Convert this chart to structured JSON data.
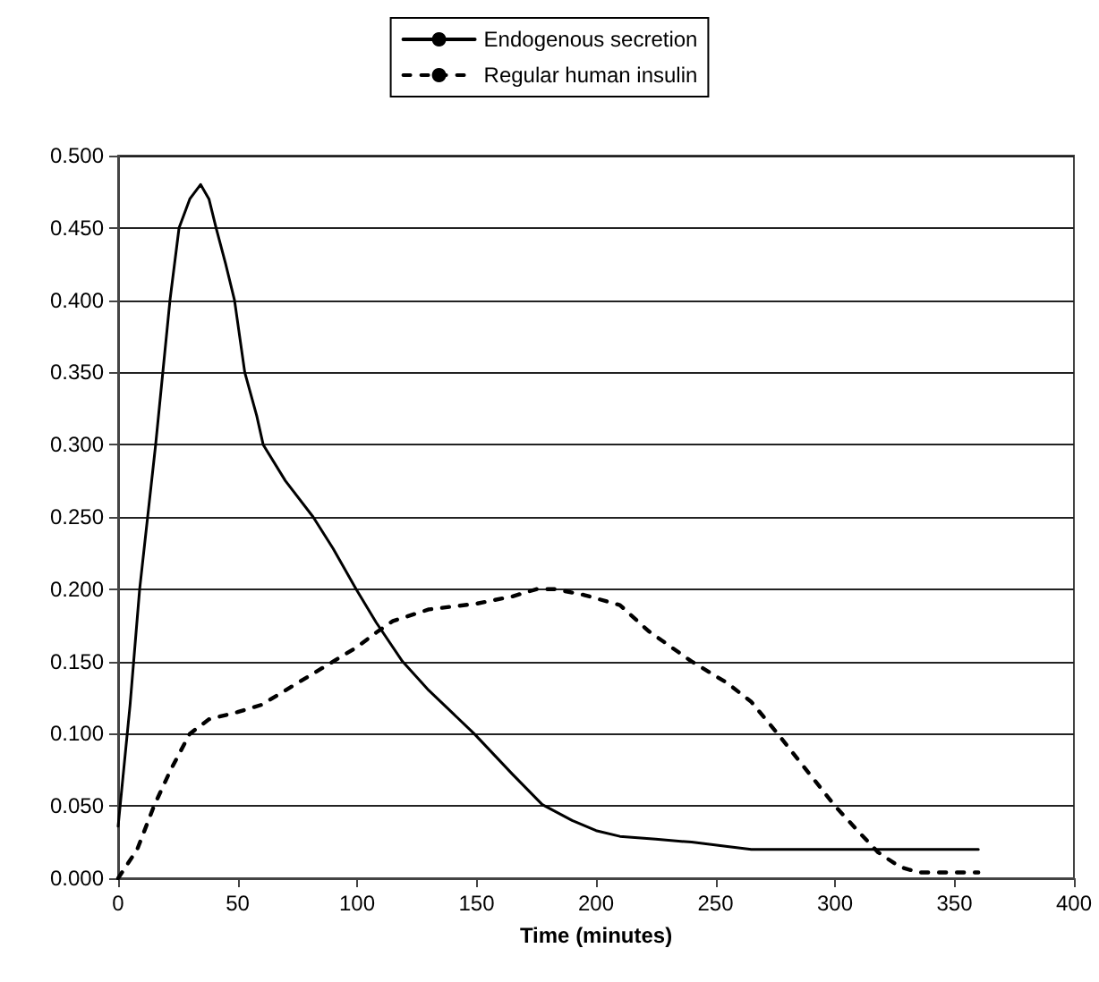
{
  "chart_data": {
    "type": "line",
    "xlabel": "Time (minutes)",
    "xlim": [
      0,
      400
    ],
    "xticks": [
      0,
      50,
      100,
      150,
      200,
      250,
      300,
      350,
      400
    ],
    "ylim": [
      0,
      0.5
    ],
    "yticks": [
      {
        "value": 0,
        "label": "0.000"
      },
      {
        "value": 0.05,
        "label": "0.050"
      },
      {
        "value": 0.1,
        "label": "0.100"
      },
      {
        "value": 0.15,
        "label": "0.150"
      },
      {
        "value": 0.2,
        "label": "0.200"
      },
      {
        "value": 0.25,
        "label": "0.250"
      },
      {
        "value": 0.3,
        "label": "0.300"
      },
      {
        "value": 0.35,
        "label": "0.350"
      },
      {
        "value": 0.4,
        "label": "0.400"
      },
      {
        "value": 0.45,
        "label": "0.450"
      },
      {
        "value": 0.5,
        "label": "0.500"
      }
    ],
    "grid": "y",
    "legend": "top",
    "marker": "none",
    "series": [
      {
        "name": "Endogenous secretion",
        "color": "#000000",
        "line_style": "solid",
        "x": [
          0,
          5,
          9,
          15.7,
          18.7,
          21.7,
          25.5,
          30,
          34.5,
          38,
          41,
          45,
          48.7,
          53,
          58,
          60.7,
          70,
          81.6,
          90,
          99.6,
          108,
          119,
          130,
          149,
          165,
          177.5,
          190,
          200,
          210,
          225,
          240,
          255,
          265,
          300,
          330,
          360
        ],
        "values": [
          0.036,
          0.12,
          0.2,
          0.3,
          0.35,
          0.4,
          0.45,
          0.47,
          0.48,
          0.47,
          0.45,
          0.425,
          0.4,
          0.35,
          0.32,
          0.3,
          0.275,
          0.25,
          0.228,
          0.2,
          0.177,
          0.15,
          0.13,
          0.1,
          0.072,
          0.051,
          0.04,
          0.033,
          0.029,
          0.027,
          0.025,
          0.022,
          0.02,
          0.02,
          0.02,
          0.02
        ]
      },
      {
        "name": "Regular human insulin",
        "color": "#000000",
        "line_style": "dashed",
        "x": [
          0,
          8,
          15,
          22,
          30,
          38,
          50,
          60,
          70,
          80,
          90,
          100,
          108,
          115,
          130,
          150,
          165,
          175,
          183,
          195,
          210,
          222,
          240,
          255,
          265,
          276,
          288,
          300,
          310,
          318,
          327,
          335,
          345,
          360
        ],
        "values": [
          0,
          0.02,
          0.05,
          0.075,
          0.1,
          0.11,
          0.115,
          0.12,
          0.13,
          0.14,
          0.15,
          0.16,
          0.17,
          0.178,
          0.186,
          0.19,
          0.195,
          0.2,
          0.2,
          0.196,
          0.189,
          0.171,
          0.15,
          0.135,
          0.122,
          0.1,
          0.075,
          0.05,
          0.032,
          0.018,
          0.008,
          0.004,
          0.004,
          0.004
        ]
      }
    ]
  }
}
